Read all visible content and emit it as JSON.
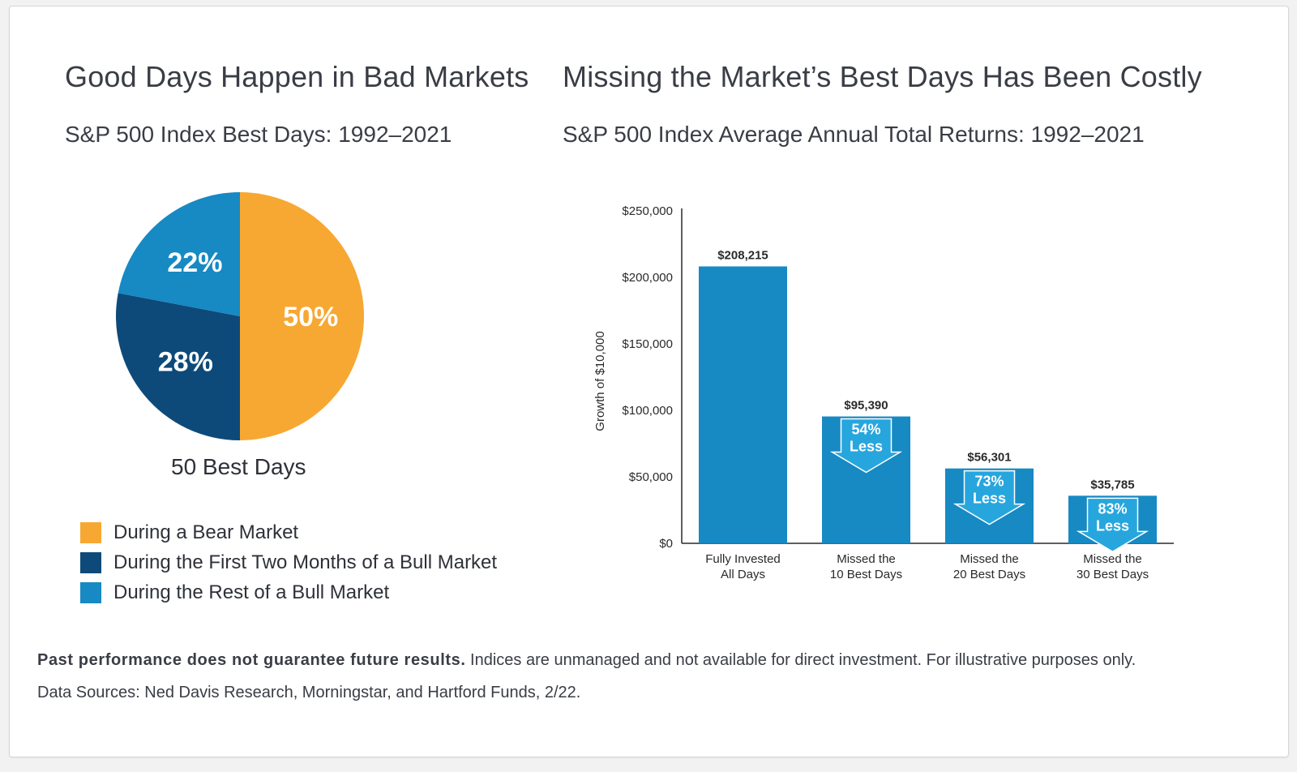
{
  "left_panel": {
    "title": "Good Days Happen in Bad Markets",
    "subtitle": "S&P 500 Index Best Days: 1992–2021",
    "pie_caption": "50 Best Days"
  },
  "right_panel": {
    "title": "Missing the Market’s Best Days Has Been Costly",
    "subtitle": "S&P 500 Index Average Annual Total Returns: 1992–2021"
  },
  "chart_data": [
    {
      "type": "pie",
      "labels": [
        "During a Bear Market",
        "During the First Two Months of a Bull Market",
        "During the Rest of a Bull Market"
      ],
      "values": [
        50,
        28,
        22
      ],
      "value_labels": [
        "50%",
        "28%",
        "22%"
      ],
      "colors": [
        "#f7a832",
        "#0d4a7a",
        "#1789c3"
      ]
    },
    {
      "type": "bar",
      "categories": [
        [
          "Fully Invested",
          "All Days"
        ],
        [
          "Missed the",
          "10 Best Days"
        ],
        [
          "Missed the",
          "20 Best Days"
        ],
        [
          "Missed the",
          "30 Best Days"
        ]
      ],
      "values": [
        208215,
        95390,
        56301,
        35785
      ],
      "value_labels": [
        "$208,215",
        "$95,390",
        "$56,301",
        "$35,785"
      ],
      "annotations": [
        null,
        [
          "54%",
          "Less"
        ],
        [
          "73%",
          "Less"
        ],
        [
          "83%",
          "Less"
        ]
      ],
      "ylabel": "Growth of $10,000",
      "ylim": [
        0,
        250000
      ],
      "yticks": [
        0,
        50000,
        100000,
        150000,
        200000,
        250000
      ],
      "ytick_labels": [
        "$0",
        "$50,000",
        "$100,000",
        "$150,000",
        "$200,000",
        "$250,000"
      ],
      "bar_color": "#1789c3",
      "arrow_color": "#27a6de"
    }
  ],
  "footer": {
    "disclaimer_bold": "Past performance does not guarantee future results.",
    "disclaimer_rest": " Indices are unmanaged and not available for direct investment. For illustrative purposes only.",
    "sources": "Data Sources: Ned Davis Research, Morningstar, and Hartford Funds, 2/22."
  }
}
